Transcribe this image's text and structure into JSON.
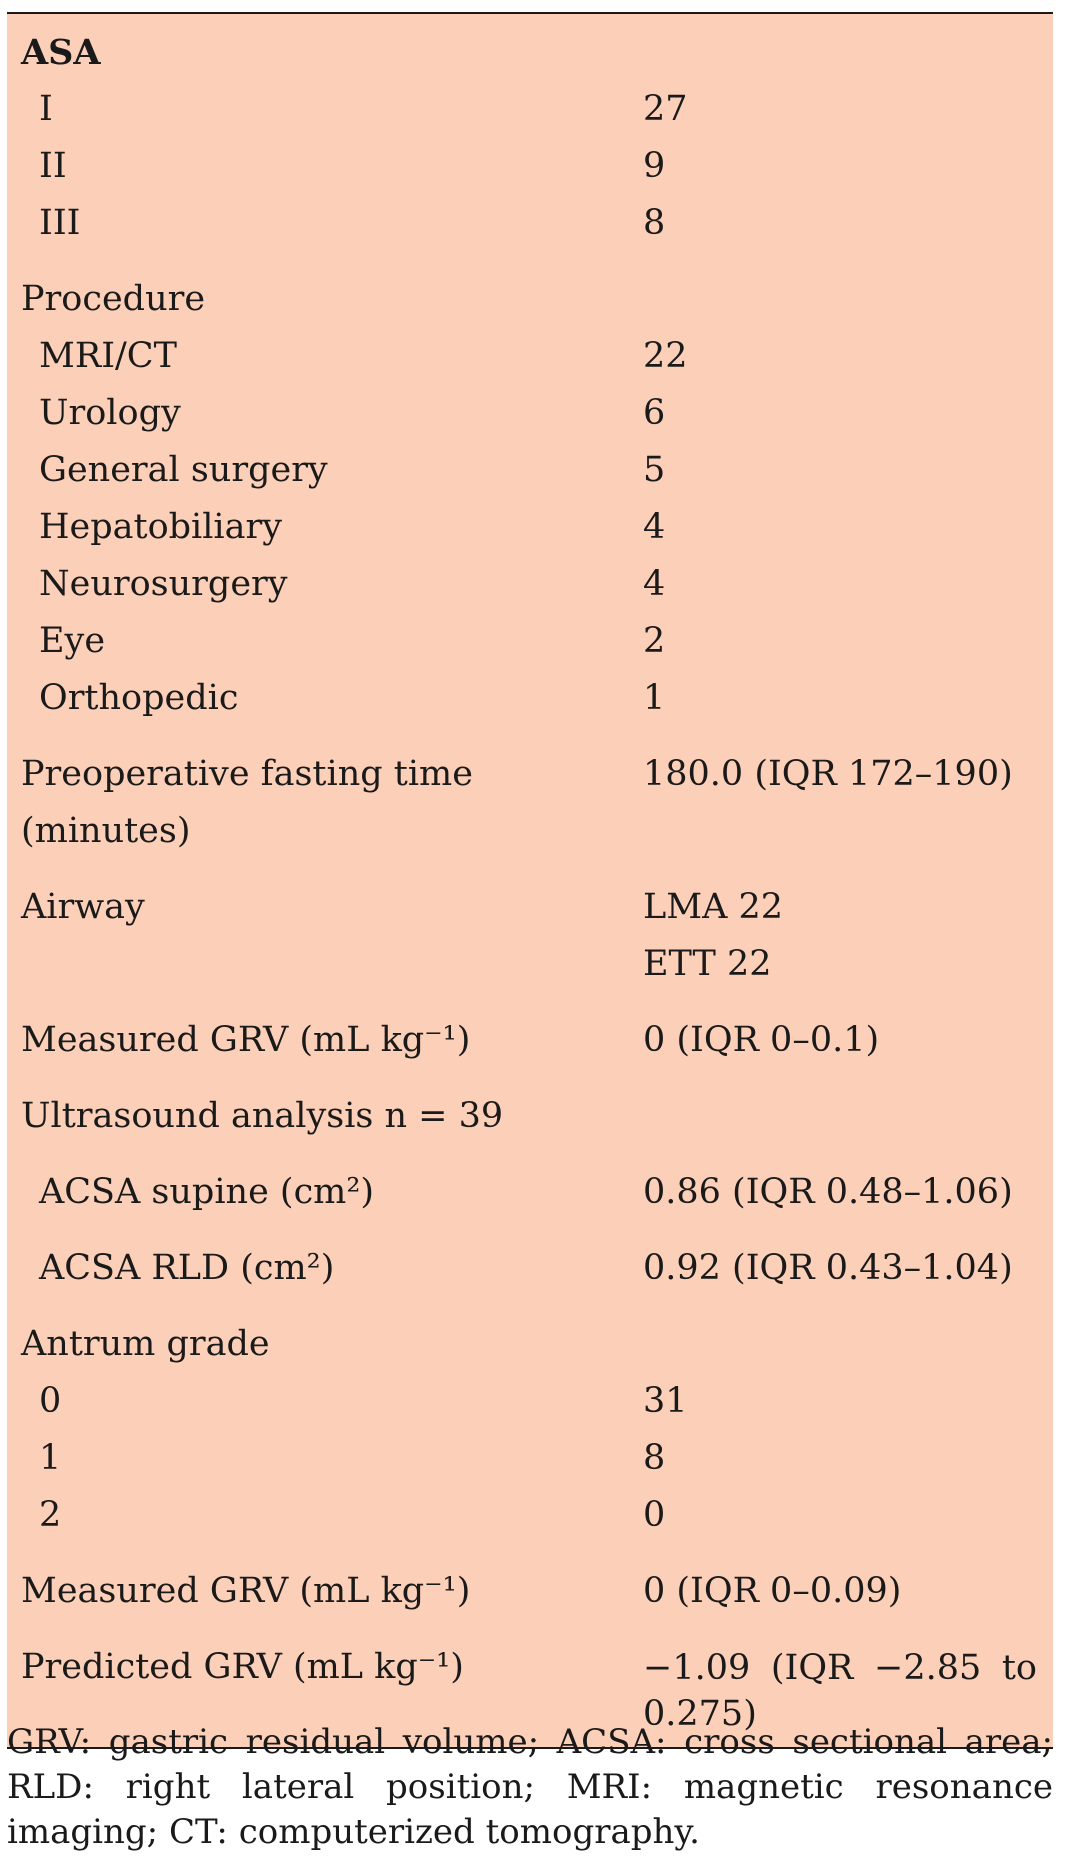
{
  "asa": {
    "header": "ASA",
    "rows": [
      {
        "label": "I",
        "value": "27"
      },
      {
        "label": "II",
        "value": "9"
      },
      {
        "label": "III",
        "value": "8"
      }
    ]
  },
  "procedure": {
    "header": "Procedure",
    "rows": [
      {
        "label": "MRI/CT",
        "value": "22"
      },
      {
        "label": "Urology",
        "value": "6"
      },
      {
        "label": "General surgery",
        "value": "5"
      },
      {
        "label": "Hepatobiliary",
        "value": "4"
      },
      {
        "label": "Neurosurgery",
        "value": "4"
      },
      {
        "label": "Eye",
        "value": "2"
      },
      {
        "label": "Orthopedic",
        "value": "1"
      }
    ]
  },
  "fasting": {
    "label": "Preoperative fasting time (minutes)",
    "value": "180.0 (IQR 172–190)"
  },
  "airway": {
    "label": "Airway",
    "values": [
      "LMA 22",
      "ETT 22"
    ]
  },
  "measured_grv_1": {
    "label": "Measured GRV (mL kg⁻¹)",
    "value": "0 (IQR 0–0.1)"
  },
  "ultrasound": {
    "header": "Ultrasound analysis n = 39",
    "rows": [
      {
        "label": "ACSA supine (cm²)",
        "value": "0.86 (IQR 0.48–1.06)"
      },
      {
        "label": "ACSA RLD (cm²)",
        "value": "0.92 (IQR 0.43–1.04)"
      }
    ]
  },
  "antrum": {
    "header": "Antrum grade",
    "rows": [
      {
        "label": "0",
        "value": "31"
      },
      {
        "label": "1",
        "value": "8"
      },
      {
        "label": "2",
        "value": "0"
      }
    ]
  },
  "measured_grv_2": {
    "label": "Measured GRV (mL kg⁻¹)",
    "value": "0 (IQR 0–0.09)"
  },
  "predicted_grv": {
    "label": "Predicted GRV (mL kg⁻¹)",
    "value": "−1.09 (IQR −2.85 to 0.275)"
  },
  "footnote": "GRV: gastric residual volume; ACSA: cross sectional area; RLD: right lateral position; MRI: magnetic resonance imaging; CT: computerized tomography."
}
